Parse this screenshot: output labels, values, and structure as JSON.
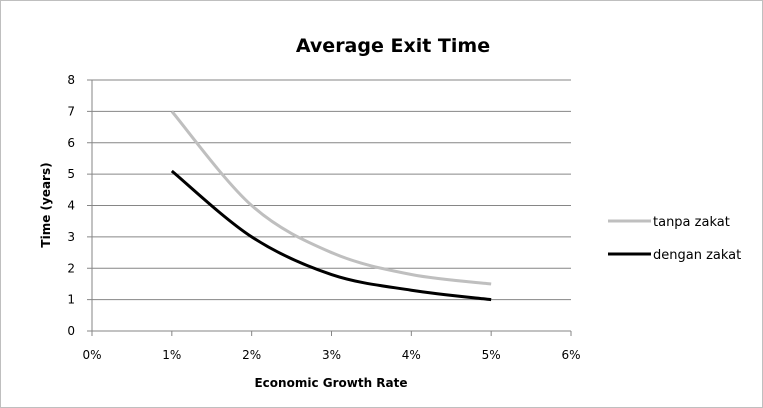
{
  "chart_data": {
    "type": "line",
    "title": "Average Exit Time",
    "xlabel": "Economic Growth Rate",
    "ylabel": "Time (years)",
    "x_ticks": [
      "0%",
      "1%",
      "2%",
      "3%",
      "4%",
      "5%",
      "6%"
    ],
    "y_ticks": [
      "0",
      "1",
      "2",
      "3",
      "4",
      "5",
      "6",
      "7",
      "8"
    ],
    "xlim": [
      0,
      6
    ],
    "ylim": [
      0,
      8
    ],
    "grid": "horizontal",
    "legend_position": "right",
    "x": [
      1,
      2,
      3,
      4,
      5
    ],
    "series": [
      {
        "name": "tanpa zakat",
        "color": "#bfbfbf",
        "values": [
          7.0,
          4.0,
          2.5,
          1.8,
          1.5
        ]
      },
      {
        "name": "dengan zakat",
        "color": "#000000",
        "values": [
          5.1,
          3.0,
          1.8,
          1.3,
          1.0
        ]
      }
    ]
  }
}
